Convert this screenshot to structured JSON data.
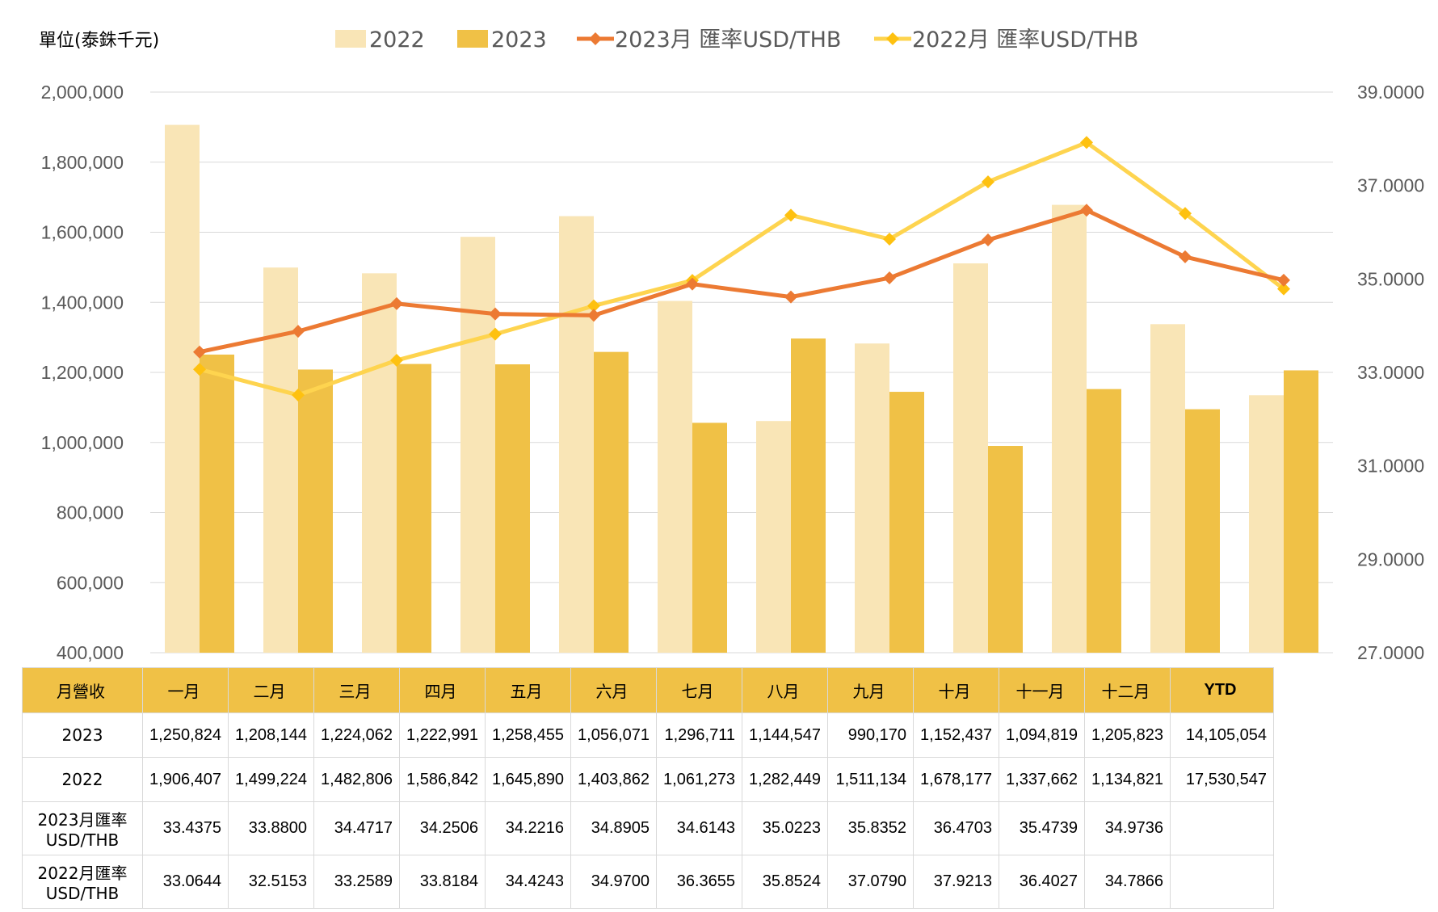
{
  "unit_label": "單位(泰銖千元)",
  "colors": {
    "bar_2022": "#f9e5b6",
    "bar_2023": "#f0c146",
    "line_2023": "#ec7a33",
    "line_2022": "#fed44f",
    "line_2022_marker": "#fec110",
    "gridline": "#d9d9d9",
    "table_header": "#f0c146"
  },
  "chart_data": {
    "type": "bar+line",
    "categories": [
      "一月",
      "二月",
      "三月",
      "四月",
      "五月",
      "六月",
      "七月",
      "八月",
      "九月",
      "十月",
      "十一月",
      "十二月"
    ],
    "series": [
      {
        "name": "2022",
        "type": "bar",
        "axis": "left",
        "values": [
          1906407,
          1499224,
          1482806,
          1586842,
          1645890,
          1403862,
          1061273,
          1282449,
          1511134,
          1678177,
          1337662,
          1134821
        ]
      },
      {
        "name": "2023",
        "type": "bar",
        "axis": "left",
        "values": [
          1250824,
          1208144,
          1224062,
          1222991,
          1258455,
          1056071,
          1296711,
          1144547,
          990170,
          1152437,
          1094819,
          1205823
        ]
      },
      {
        "name": "2023月 匯率USD/THB",
        "type": "line",
        "axis": "right",
        "values": [
          33.4375,
          33.88,
          34.4717,
          34.2506,
          34.2216,
          34.8905,
          34.6143,
          35.0223,
          35.8352,
          36.4703,
          35.4739,
          34.9736
        ]
      },
      {
        "name": "2022月 匯率USD/THB",
        "type": "line",
        "axis": "right",
        "values": [
          33.0644,
          32.5153,
          33.2589,
          33.8184,
          34.4243,
          34.97,
          36.3655,
          35.8524,
          37.079,
          37.9213,
          36.4027,
          34.7866
        ]
      }
    ],
    "ylim_left": [
      400000,
      2000000
    ],
    "yticks_left": [
      "400,000",
      "600,000",
      "800,000",
      "1,000,000",
      "1,200,000",
      "1,400,000",
      "1,600,000",
      "1,800,000",
      "2,000,000"
    ],
    "ylim_right": [
      27.0,
      39.0
    ],
    "yticks_right": [
      "27.0000",
      "29.0000",
      "31.0000",
      "33.0000",
      "35.0000",
      "37.0000",
      "39.0000"
    ],
    "legend_position": "top",
    "grid": true
  },
  "table": {
    "header": [
      "月營收",
      "一月",
      "二月",
      "三月",
      "四月",
      "五月",
      "六月",
      "七月",
      "八月",
      "九月",
      "十月",
      "十一月",
      "十二月",
      "YTD"
    ],
    "rows": [
      {
        "label": "2023",
        "cells": [
          "1,250,824",
          "1,208,144",
          "1,224,062",
          "1,222,991",
          "1,258,455",
          "1,056,071",
          "1,296,711",
          "1,144,547",
          "990,170",
          "1,152,437",
          "1,094,819",
          "1,205,823",
          "14,105,054"
        ]
      },
      {
        "label": "2022",
        "cells": [
          "1,906,407",
          "1,499,224",
          "1,482,806",
          "1,586,842",
          "1,645,890",
          "1,403,862",
          "1,061,273",
          "1,282,449",
          "1,511,134",
          "1,678,177",
          "1,337,662",
          "1,134,821",
          "17,530,547"
        ]
      },
      {
        "label_line1": "2023月匯率",
        "label_line2": "USD/THB",
        "cells": [
          "33.4375",
          "33.8800",
          "34.4717",
          "34.2506",
          "34.2216",
          "34.8905",
          "34.6143",
          "35.0223",
          "35.8352",
          "36.4703",
          "35.4739",
          "34.9736",
          ""
        ]
      },
      {
        "label_line1": "2022月匯率",
        "label_line2": "USD/THB",
        "cells": [
          "33.0644",
          "32.5153",
          "33.2589",
          "33.8184",
          "34.4243",
          "34.9700",
          "36.3655",
          "35.8524",
          "37.0790",
          "37.9213",
          "36.4027",
          "34.7866",
          ""
        ]
      }
    ]
  }
}
